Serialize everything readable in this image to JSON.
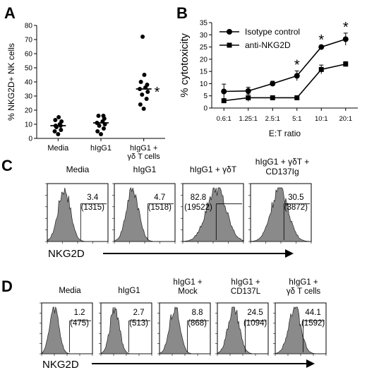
{
  "panels": {
    "A": {
      "letter": "A"
    },
    "B": {
      "letter": "B"
    },
    "C": {
      "letter": "C"
    },
    "D": {
      "letter": "D"
    }
  },
  "chart_data": [
    {
      "panel": "A",
      "type": "scatter",
      "ylabel": "% NKG2D+ NK cells",
      "xlabel": "",
      "ylim": [
        0,
        80
      ],
      "yticks": [
        0,
        10,
        20,
        30,
        40,
        50,
        60,
        70,
        80
      ],
      "categories": [
        "Media",
        "hIgG1",
        "hIgG1 +|γδ T cells"
      ],
      "series": [
        {
          "values": [
            3,
            5,
            6,
            8,
            9,
            9,
            10,
            12,
            13,
            15
          ]
        },
        {
          "values": [
            3,
            5,
            7,
            9,
            10,
            11,
            12,
            14,
            16,
            16
          ]
        },
        {
          "values": [
            21,
            24,
            28,
            31,
            33,
            35,
            36,
            38,
            40,
            45,
            72
          ]
        }
      ],
      "medians": [
        9,
        11,
        35
      ],
      "annotations": [
        {
          "category": "hIgG1 +|γδ T cells",
          "text": "*"
        }
      ]
    },
    {
      "panel": "B",
      "type": "line",
      "xlabel": "E:T ratio",
      "ylabel": "% cytotoxicity",
      "ylim": [
        0,
        35
      ],
      "yticks": [
        0,
        5,
        10,
        15,
        20,
        25,
        30,
        35
      ],
      "categories": [
        "0.6:1",
        "1.25:1",
        "2.5:1",
        "5:1",
        "10:1",
        "20:1"
      ],
      "series": [
        {
          "name": "Isotype control",
          "marker": "circle",
          "values": [
            6.8,
            7.0,
            10.0,
            13.2,
            25.0,
            28.2
          ],
          "errors": [
            3.0,
            1.5,
            1.0,
            2.0,
            0.5,
            2.5
          ]
        },
        {
          "name": "anti-NKG2D",
          "marker": "square",
          "values": [
            3.0,
            4.2,
            4.2,
            4.2,
            15.8,
            18.0
          ],
          "errors": [
            0.5,
            1.5,
            0.5,
            0.5,
            1.8,
            1.0
          ]
        }
      ],
      "annotations": [
        {
          "category": "5:1",
          "text": "*"
        },
        {
          "category": "10:1",
          "text": "*"
        },
        {
          "category": "20:1",
          "text": "*"
        }
      ],
      "legend": "top-left"
    },
    {
      "panel": "C",
      "type": "histogram",
      "axis_label": "NKG2D",
      "histograms": [
        {
          "label": "Media",
          "percent": "3.4",
          "mfi": "(1315)"
        },
        {
          "label": "hIgG1",
          "percent": "4.7",
          "mfi": "(1518)"
        },
        {
          "label": "hIgG1 + γδT",
          "percent": "82.8",
          "mfi": "(19522)"
        },
        {
          "label": "hIgG1 + γδT +|CD137Ig",
          "percent": "30.5",
          "mfi": "(3872)"
        }
      ]
    },
    {
      "panel": "D",
      "type": "histogram",
      "axis_label": "NKG2D",
      "histograms": [
        {
          "label": "Media",
          "percent": "1.2",
          "mfi": "(475)"
        },
        {
          "label": "hIgG1",
          "percent": "2.7",
          "mfi": "(513)"
        },
        {
          "label": "hIgG1 +|Mock",
          "percent": "8.8",
          "mfi": "(868)"
        },
        {
          "label": "hIgG1 +|CD137L",
          "percent": "24.5",
          "mfi": "(1094)"
        },
        {
          "label": "hIgG1 +|γδ T cells",
          "percent": "44.1",
          "mfi": "(1592)"
        }
      ]
    }
  ]
}
